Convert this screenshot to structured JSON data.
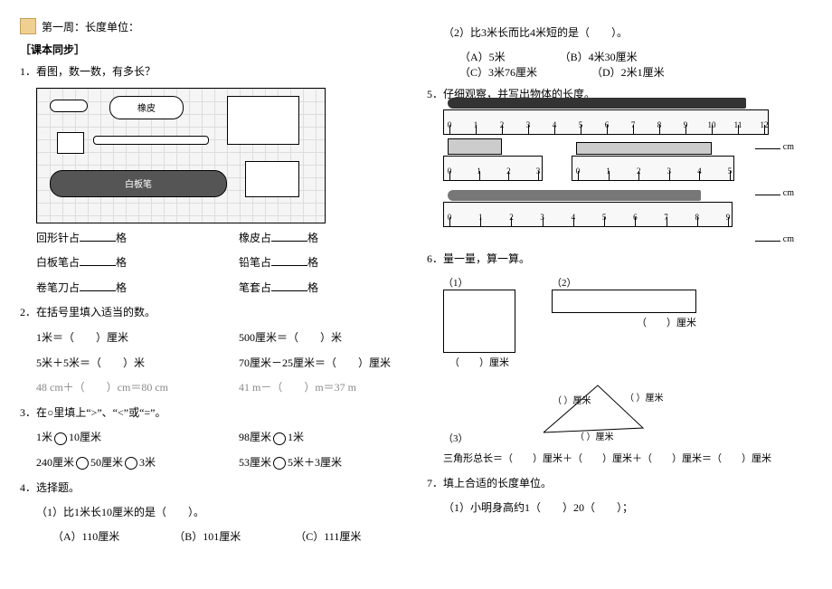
{
  "page": {
    "week_title": "第一周：长度单位：",
    "sync_head": "［课本同步］"
  },
  "left": {
    "q1": {
      "title": "1．看图，数一数，有多长？",
      "items": [
        {
          "a": "回形针占",
          "b": "格",
          "c": "橡皮占",
          "d": "格"
        },
        {
          "a": "白板笔占",
          "b": "格",
          "c": "铅笔占",
          "d": "格"
        },
        {
          "a": "卷笔刀占",
          "b": "格",
          "c": "笔套占",
          "d": "格"
        }
      ],
      "objs": {
        "eraser": "橡皮",
        "marker": "白板笔"
      }
    },
    "q2": {
      "title": "2．在括号里填入适当的数。",
      "rows": [
        {
          "l": "1米＝（　　）厘米",
          "r": "500厘米＝（　　）米"
        },
        {
          "l": "5米＋5米＝（　　）米",
          "r": "70厘米－25厘米＝（　　）厘米"
        },
        {
          "l": "48 cm＋（　　）cm＝80 cm",
          "r": "41 m－（　　）m＝37 m"
        }
      ]
    },
    "q3": {
      "title": "3．在○里填上“>”、“<”或“=”。",
      "rows": [
        {
          "l1": "1米",
          "l2": "10厘米",
          "r1": "98厘米",
          "r2": "1米"
        },
        {
          "l1": "240厘米",
          "l2": "50厘米",
          "l3": "3米",
          "r1": "53厘米",
          "r2": "5米＋3厘米"
        }
      ]
    },
    "q4": {
      "title": "4．选择题。",
      "sub1": "（1）比1米长10厘米的是（　　）。",
      "opts1": {
        "a": "（A）110厘米",
        "b": "（B）101厘米",
        "c": "（C）111厘米"
      }
    }
  },
  "right": {
    "q4_2": {
      "stem": "（2）比3米长而比4米短的是（　　）。",
      "a": "（A）5米",
      "b": "（B）4米30厘米",
      "c": "（C）3米76厘米",
      "d": "（D）2米1厘米"
    },
    "q5": {
      "title": "5．仔细观察，并写出物体的长度。",
      "cm": "cm",
      "ruler1_ticks": [
        0,
        1,
        2,
        3,
        4,
        5,
        6,
        7,
        8,
        9,
        10,
        11,
        12
      ],
      "ruler2_ticks": [
        0,
        1,
        2,
        3
      ],
      "ruler3_ticks": [
        0,
        1,
        2,
        3,
        4,
        5
      ],
      "ruler4_ticks": [
        0,
        1,
        2,
        3,
        4,
        5,
        6,
        7,
        8,
        9
      ]
    },
    "q6": {
      "title": "6．量一量，算一算。",
      "s1": "（1）",
      "s2": "（2）",
      "s3": "（3）",
      "cm_unit": "厘米",
      "tri_sum": "三角形总长＝（　　）厘米＋（　　）厘米＋（　　）厘米＝（　　）厘米"
    },
    "q7": {
      "title": "7．填上合适的长度单位。",
      "sub": "（1）小明身高约1（　　）20（　　）；"
    }
  }
}
